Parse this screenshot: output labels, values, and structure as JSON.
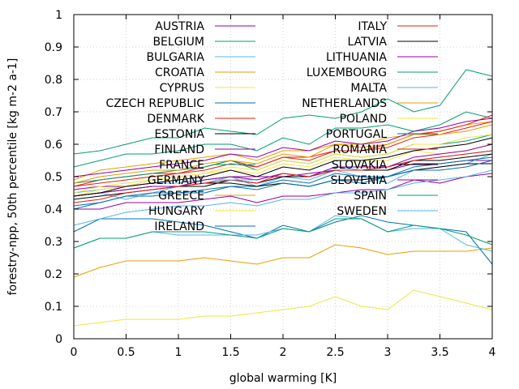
{
  "chart_data": {
    "type": "line",
    "title": "",
    "xlabel": "global warming [K]",
    "ylabel": "forestry-npp, 50th percentile [kg m-2 a-1]",
    "xlim": [
      0,
      4
    ],
    "ylim": [
      0,
      1
    ],
    "x_ticks": [
      "0",
      "0.5",
      "1",
      "1.5",
      "2",
      "2.5",
      "3",
      "3.5",
      "4"
    ],
    "y_ticks": [
      "0",
      "0.1",
      "0.2",
      "0.3",
      "0.4",
      "0.5",
      "0.6",
      "0.7",
      "0.8",
      "0.9",
      "1"
    ],
    "grid": true,
    "legend_position": "top, two columns",
    "x": [
      0,
      0.25,
      0.5,
      0.75,
      1,
      1.25,
      1.5,
      1.75,
      2,
      2.25,
      2.5,
      2.75,
      3,
      3.25,
      3.5,
      3.75,
      4
    ],
    "series": [
      {
        "name": "AUSTRIA",
        "color": "#94009c",
        "values": [
          0.46,
          0.47,
          0.47,
          0.48,
          0.48,
          0.49,
          0.5,
          0.5,
          0.5,
          0.51,
          0.52,
          0.52,
          0.52,
          0.54,
          0.54,
          0.55,
          0.55
        ]
      },
      {
        "name": "BELGIUM",
        "color": "#009e73",
        "values": [
          0.53,
          0.55,
          0.57,
          0.57,
          0.58,
          0.6,
          0.6,
          0.58,
          0.62,
          0.6,
          0.65,
          0.65,
          0.66,
          0.64,
          0.66,
          0.7,
          0.68
        ]
      },
      {
        "name": "BULGARIA",
        "color": "#56b4e9",
        "values": [
          0.44,
          0.45,
          0.43,
          0.45,
          0.47,
          0.48,
          0.5,
          0.47,
          0.5,
          0.49,
          0.52,
          0.5,
          0.48,
          0.52,
          0.53,
          0.54,
          0.57
        ]
      },
      {
        "name": "CROATIA",
        "color": "#e69f00",
        "values": [
          0.49,
          0.52,
          0.53,
          0.54,
          0.55,
          0.56,
          0.57,
          0.55,
          0.58,
          0.58,
          0.6,
          0.6,
          0.62,
          0.63,
          0.64,
          0.66,
          0.67
        ]
      },
      {
        "name": "CYPRUS",
        "color": "#f0e442",
        "values": [
          0.04,
          0.05,
          0.06,
          0.06,
          0.06,
          0.07,
          0.07,
          0.08,
          0.09,
          0.1,
          0.13,
          0.1,
          0.09,
          0.15,
          0.13,
          0.11,
          0.09
        ]
      },
      {
        "name": "CZECH REPUBLIC",
        "color": "#0072b2",
        "values": [
          0.41,
          0.42,
          0.44,
          0.45,
          0.45,
          0.46,
          0.47,
          0.47,
          0.49,
          0.48,
          0.51,
          0.5,
          0.5,
          0.53,
          0.54,
          0.55,
          0.56
        ]
      },
      {
        "name": "DENMARK",
        "color": "#e51e10",
        "values": [
          0.47,
          0.49,
          0.5,
          0.51,
          0.51,
          0.53,
          0.55,
          0.53,
          0.56,
          0.56,
          0.58,
          0.58,
          0.6,
          0.63,
          0.64,
          0.66,
          0.69
        ]
      },
      {
        "name": "ESTONIA",
        "color": "#000000",
        "values": [
          0.44,
          0.45,
          0.46,
          0.47,
          0.47,
          0.48,
          0.48,
          0.47,
          0.48,
          0.47,
          0.49,
          0.49,
          0.5,
          0.52,
          0.53,
          0.54,
          0.54
        ]
      },
      {
        "name": "FINLAND",
        "color": "#94009c",
        "values": [
          0.4,
          0.4,
          0.42,
          0.42,
          0.42,
          0.43,
          0.44,
          0.42,
          0.44,
          0.44,
          0.45,
          0.46,
          0.46,
          0.49,
          0.48,
          0.5,
          0.51
        ]
      },
      {
        "name": "FRANCE",
        "color": "#009e73",
        "values": [
          0.48,
          0.49,
          0.5,
          0.51,
          0.52,
          0.53,
          0.55,
          0.52,
          0.55,
          0.54,
          0.57,
          0.56,
          0.57,
          0.6,
          0.6,
          0.61,
          0.63
        ]
      },
      {
        "name": "GERMANY",
        "color": "#56b4e9",
        "values": [
          0.45,
          0.46,
          0.47,
          0.48,
          0.48,
          0.49,
          0.5,
          0.49,
          0.51,
          0.5,
          0.53,
          0.52,
          0.53,
          0.55,
          0.56,
          0.57,
          0.58
        ]
      },
      {
        "name": "GREECE",
        "color": "#e69f00",
        "values": [
          0.19,
          0.22,
          0.24,
          0.24,
          0.24,
          0.25,
          0.24,
          0.23,
          0.25,
          0.25,
          0.29,
          0.28,
          0.26,
          0.27,
          0.27,
          0.27,
          0.28
        ]
      },
      {
        "name": "HUNGARY",
        "color": "#f0e442",
        "values": [
          0.44,
          0.46,
          0.47,
          0.49,
          0.5,
          0.51,
          0.52,
          0.51,
          0.54,
          0.53,
          0.56,
          0.55,
          0.55,
          0.58,
          0.57,
          0.58,
          0.6
        ]
      },
      {
        "name": "IRELAND",
        "color": "#0072b2",
        "values": [
          0.33,
          0.37,
          0.37,
          0.37,
          0.36,
          0.35,
          0.33,
          0.31,
          0.35,
          0.33,
          0.36,
          0.38,
          0.36,
          0.35,
          0.34,
          0.33,
          0.23
        ]
      },
      {
        "name": "ITALY",
        "color": "#e51e10",
        "values": [
          0.47,
          0.48,
          0.49,
          0.5,
          0.51,
          0.52,
          0.54,
          0.53,
          0.56,
          0.55,
          0.58,
          0.58,
          0.59,
          0.62,
          0.63,
          0.65,
          0.67
        ]
      },
      {
        "name": "LATVIA",
        "color": "#000000",
        "values": [
          0.43,
          0.44,
          0.45,
          0.46,
          0.47,
          0.47,
          0.49,
          0.48,
          0.5,
          0.5,
          0.52,
          0.52,
          0.52,
          0.55,
          0.55,
          0.56,
          0.57
        ]
      },
      {
        "name": "LITHUANIA",
        "color": "#94009c",
        "values": [
          0.44,
          0.45,
          0.46,
          0.47,
          0.47,
          0.49,
          0.5,
          0.49,
          0.51,
          0.5,
          0.53,
          0.53,
          0.53,
          0.56,
          0.57,
          0.58,
          0.6
        ]
      },
      {
        "name": "LUXEMBOURG",
        "color": "#009e73",
        "values": [
          0.57,
          0.58,
          0.6,
          0.62,
          0.62,
          0.65,
          0.64,
          0.63,
          0.68,
          0.69,
          0.68,
          0.7,
          0.74,
          0.7,
          0.72,
          0.83,
          0.81
        ]
      },
      {
        "name": "MALTA",
        "color": "#56b4e9",
        "values": [
          0.28,
          0.31,
          0.31,
          0.33,
          0.32,
          0.32,
          0.32,
          0.32,
          0.34,
          0.33,
          0.38,
          0.37,
          0.33,
          0.34,
          0.34,
          0.29,
          0.27
        ]
      },
      {
        "name": "NETHERLANDS",
        "color": "#e69f00",
        "values": [
          0.48,
          0.5,
          0.51,
          0.52,
          0.52,
          0.54,
          0.55,
          0.54,
          0.57,
          0.56,
          0.6,
          0.59,
          0.6,
          0.63,
          0.63,
          0.64,
          0.66
        ]
      },
      {
        "name": "POLAND",
        "color": "#f0e442",
        "values": [
          0.45,
          0.47,
          0.48,
          0.49,
          0.5,
          0.51,
          0.53,
          0.52,
          0.55,
          0.54,
          0.57,
          0.56,
          0.57,
          0.6,
          0.6,
          0.62,
          0.63
        ]
      },
      {
        "name": "PORTUGAL",
        "color": "#0072b2",
        "values": [
          0.4,
          0.42,
          0.44,
          0.44,
          0.45,
          0.45,
          0.47,
          0.46,
          0.48,
          0.47,
          0.49,
          0.48,
          0.5,
          0.52,
          0.52,
          0.53,
          0.55
        ]
      },
      {
        "name": "ROMANIA",
        "color": "#e51e10",
        "values": [
          0.42,
          0.43,
          0.45,
          0.46,
          0.47,
          0.48,
          0.49,
          0.48,
          0.51,
          0.5,
          0.52,
          0.52,
          0.53,
          0.55,
          0.56,
          0.57,
          0.58
        ]
      },
      {
        "name": "SLOVAKIA",
        "color": "#000000",
        "values": [
          0.44,
          0.45,
          0.47,
          0.48,
          0.49,
          0.5,
          0.52,
          0.5,
          0.53,
          0.52,
          0.55,
          0.55,
          0.56,
          0.58,
          0.59,
          0.6,
          0.62
        ]
      },
      {
        "name": "SLOVENIA",
        "color": "#94009c",
        "values": [
          0.5,
          0.51,
          0.52,
          0.53,
          0.54,
          0.55,
          0.57,
          0.56,
          0.59,
          0.58,
          0.61,
          0.6,
          0.61,
          0.64,
          0.65,
          0.67,
          0.68
        ]
      },
      {
        "name": "SPAIN",
        "color": "#009e73",
        "values": [
          0.28,
          0.31,
          0.31,
          0.33,
          0.33,
          0.33,
          0.32,
          0.31,
          0.34,
          0.33,
          0.37,
          0.37,
          0.33,
          0.35,
          0.34,
          0.32,
          0.29
        ]
      },
      {
        "name": "SWEDEN",
        "color": "#56b4e9",
        "values": [
          0.35,
          0.37,
          0.39,
          0.4,
          0.41,
          0.41,
          0.42,
          0.41,
          0.43,
          0.43,
          0.45,
          0.45,
          0.46,
          0.48,
          0.49,
          0.5,
          0.52
        ]
      }
    ]
  }
}
